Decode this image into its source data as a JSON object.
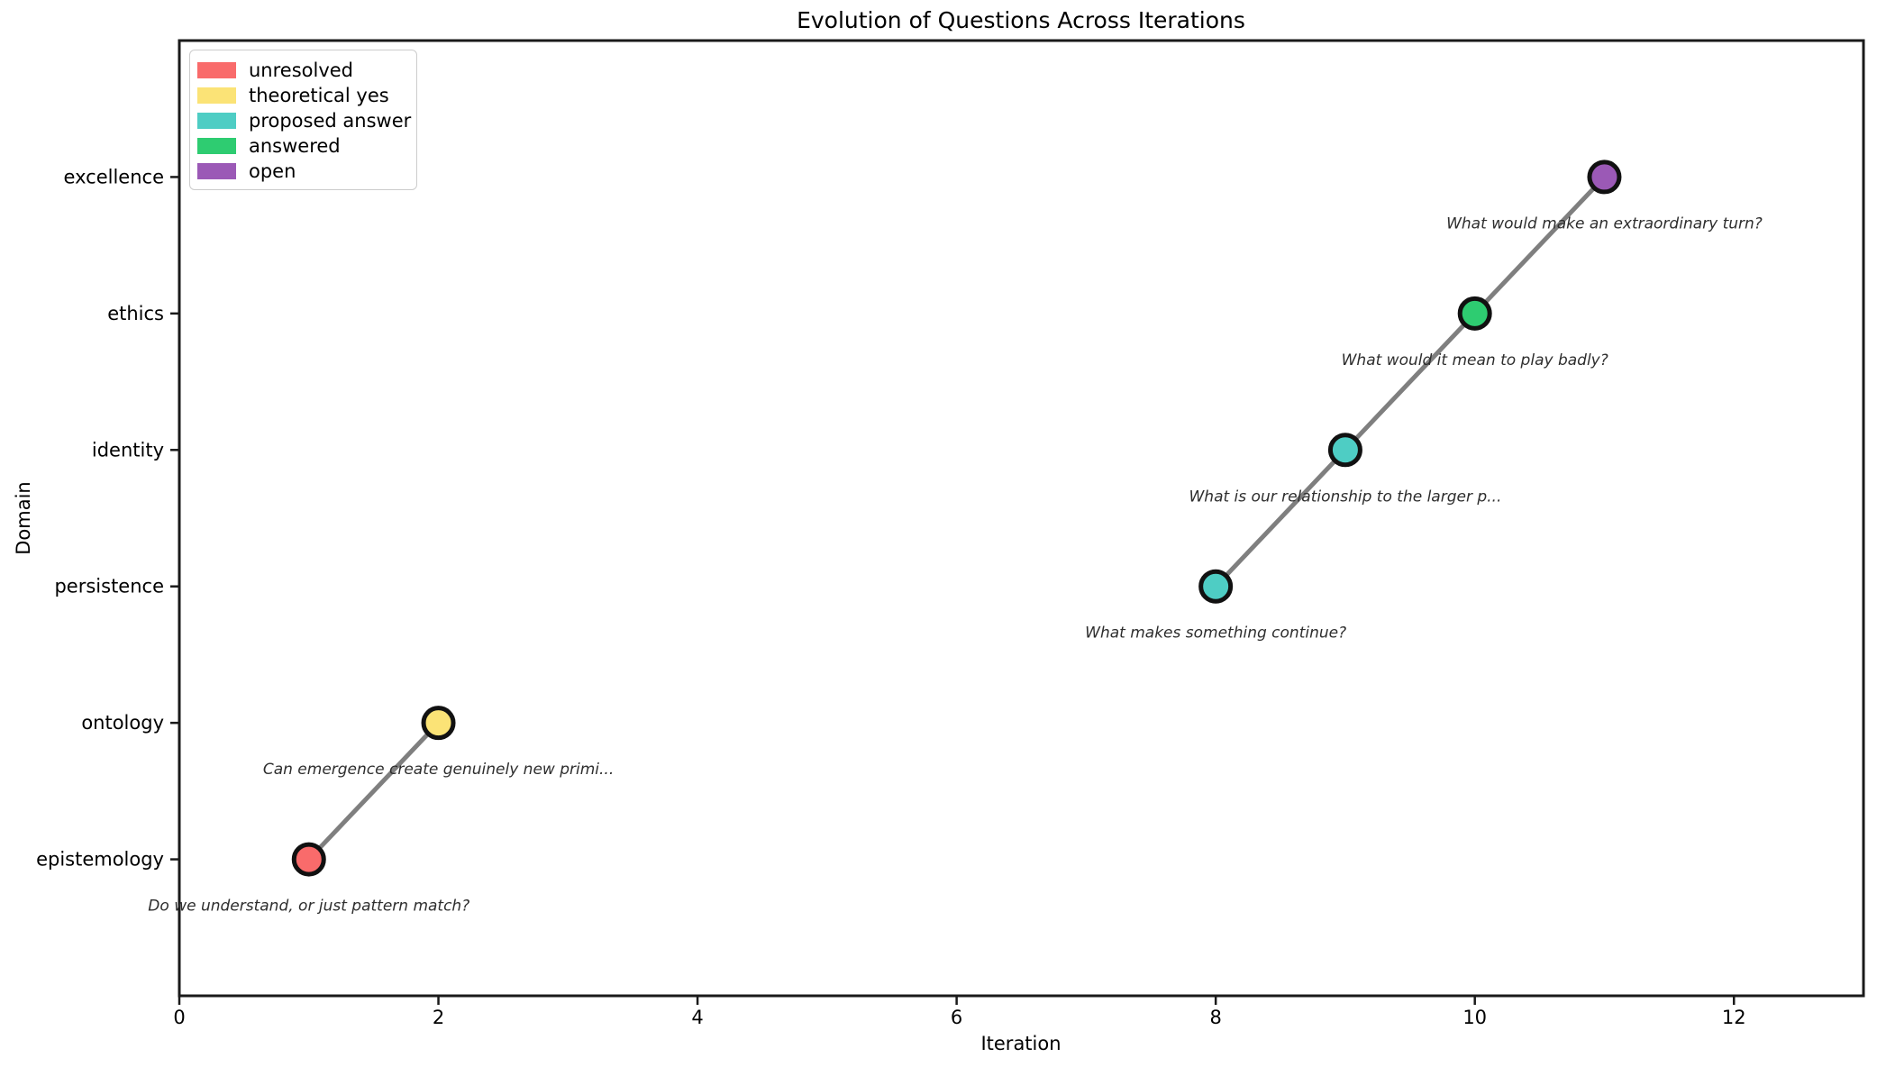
{
  "chart_data": {
    "type": "scatter",
    "title": "Evolution of Questions Across Iterations",
    "xlabel": "Iteration",
    "ylabel": "Domain",
    "xlim": [
      0,
      13
    ],
    "x_ticks": [
      0,
      2,
      4,
      6,
      8,
      10,
      12
    ],
    "y_categories": [
      "epistemology",
      "ontology",
      "persistence",
      "identity",
      "ethics",
      "excellence"
    ],
    "grid": "off",
    "legend": {
      "position": "upper left",
      "entries": [
        {
          "label": "unresolved",
          "color": "#F96B6B"
        },
        {
          "label": "theoretical yes",
          "color": "#FBE376"
        },
        {
          "label": "proposed answer",
          "color": "#4ECDC4"
        },
        {
          "label": "answered",
          "color": "#2ECC71"
        },
        {
          "label": "open",
          "color": "#9B59B6"
        }
      ]
    },
    "points": [
      {
        "x": 1,
        "domain": "epistemology",
        "status": "unresolved",
        "color": "#F96B6B",
        "annotation": "Do we understand, or just pattern match?"
      },
      {
        "x": 2,
        "domain": "ontology",
        "status": "theoretical yes",
        "color": "#FBE376",
        "annotation": "Can emergence create genuinely new primi..."
      },
      {
        "x": 8,
        "domain": "persistence",
        "status": "proposed answer",
        "color": "#4ECDC4",
        "annotation": "What makes something continue?"
      },
      {
        "x": 9,
        "domain": "identity",
        "status": "proposed answer",
        "color": "#4ECDC4",
        "annotation": "What is our relationship to the larger p..."
      },
      {
        "x": 10,
        "domain": "ethics",
        "status": "answered",
        "color": "#2ECC71",
        "annotation": "What would it mean to play badly?"
      },
      {
        "x": 11,
        "domain": "excellence",
        "status": "open",
        "color": "#9B59B6",
        "annotation": "What would make an extraordinary turn?"
      }
    ],
    "line_segments": [
      [
        0,
        1
      ],
      [
        2,
        3,
        4,
        5
      ]
    ],
    "styles": {
      "line_color": "#7f7f7f",
      "marker_edge_color": "#111111",
      "annotation_color": "#2e2e2e",
      "spine_color": "#1a1a1a",
      "background": "#ffffff"
    }
  }
}
